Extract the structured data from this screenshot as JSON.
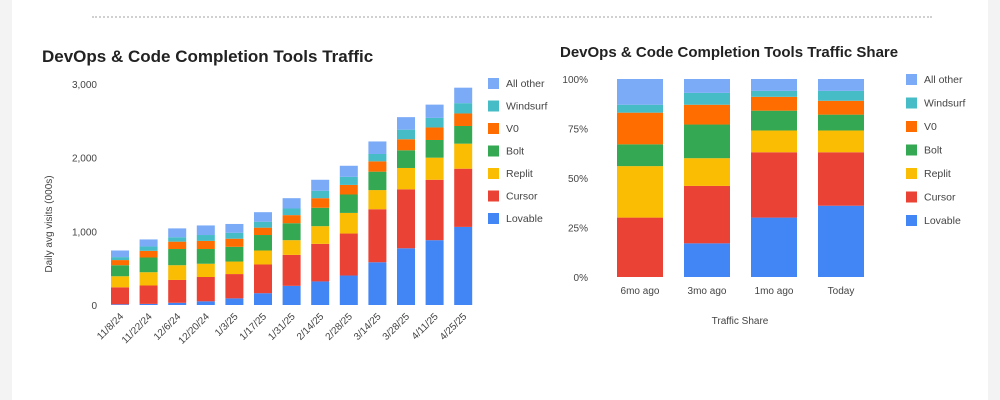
{
  "colors": {
    "Lovable": "#4285F4",
    "Cursor": "#EA4335",
    "Replit": "#FBBC04",
    "Bolt": "#34A853",
    "V0": "#FF6D01",
    "Windsurf": "#46BDC6",
    "All other": "#7BAAF7"
  },
  "legend_labels": [
    "All other",
    "Windsurf",
    "V0",
    "Bolt",
    "Replit",
    "Cursor",
    "Lovable"
  ],
  "chart_data": [
    {
      "type": "bar",
      "stacked": true,
      "title": "DevOps & Code Completion Tools Traffic",
      "ylabel": "Daily avg visits (000s)",
      "xlabel": "",
      "ylim": [
        0,
        3000
      ],
      "yticks": [
        0,
        1000,
        2000,
        3000
      ],
      "ytick_labels": [
        "0",
        "1,000",
        "2,000",
        "3,000"
      ],
      "legend_position": "right",
      "grid": false,
      "categories": [
        "11/8/24",
        "11/22/24",
        "12/6/24",
        "12/20/24",
        "1/3/25",
        "1/17/25",
        "1/31/25",
        "2/14/25",
        "2/28/25",
        "3/14/25",
        "3/28/25",
        "4/11/25",
        "4/25/25"
      ],
      "series": [
        {
          "name": "Lovable",
          "values": [
            10,
            15,
            30,
            50,
            90,
            160,
            260,
            320,
            400,
            580,
            770,
            880,
            1060
          ]
        },
        {
          "name": "Cursor",
          "values": [
            230,
            250,
            310,
            330,
            330,
            390,
            420,
            510,
            570,
            720,
            800,
            820,
            790
          ]
        },
        {
          "name": "Replit",
          "values": [
            150,
            180,
            200,
            180,
            170,
            190,
            200,
            240,
            280,
            260,
            290,
            300,
            340
          ]
        },
        {
          "name": "Bolt",
          "values": [
            150,
            200,
            220,
            200,
            200,
            210,
            230,
            250,
            250,
            250,
            240,
            240,
            240
          ]
        },
        {
          "name": "V0",
          "values": [
            70,
            90,
            100,
            110,
            110,
            100,
            110,
            130,
            130,
            140,
            150,
            170,
            170
          ]
        },
        {
          "name": "Windsurf",
          "values": [
            40,
            60,
            60,
            80,
            80,
            80,
            90,
            100,
            110,
            100,
            130,
            130,
            140
          ]
        },
        {
          "name": "All other",
          "values": [
            90,
            95,
            120,
            130,
            120,
            130,
            140,
            150,
            150,
            170,
            170,
            180,
            210
          ]
        }
      ]
    },
    {
      "type": "bar",
      "stacked": true,
      "percent": true,
      "title": "DevOps & Code Completion Tools Traffic Share",
      "xlabel": "Traffic Share",
      "ylabel": "",
      "ylim": [
        0,
        100
      ],
      "yticks": [
        0,
        25,
        50,
        75,
        100
      ],
      "ytick_labels": [
        "0%",
        "25%",
        "50%",
        "75%",
        "100%"
      ],
      "legend_position": "right",
      "grid": false,
      "categories": [
        "6mo ago",
        "3mo ago",
        "1mo ago",
        "Today"
      ],
      "series": [
        {
          "name": "Lovable",
          "values": [
            0,
            17,
            30,
            36
          ]
        },
        {
          "name": "Cursor",
          "values": [
            30,
            29,
            33,
            27
          ]
        },
        {
          "name": "Replit",
          "values": [
            26,
            14,
            11,
            11
          ]
        },
        {
          "name": "Bolt",
          "values": [
            11,
            17,
            10,
            8
          ]
        },
        {
          "name": "V0",
          "values": [
            16,
            10,
            7,
            7
          ]
        },
        {
          "name": "Windsurf",
          "values": [
            4,
            6,
            3,
            5
          ]
        },
        {
          "name": "All other",
          "values": [
            13,
            7,
            6,
            6
          ]
        }
      ]
    }
  ]
}
